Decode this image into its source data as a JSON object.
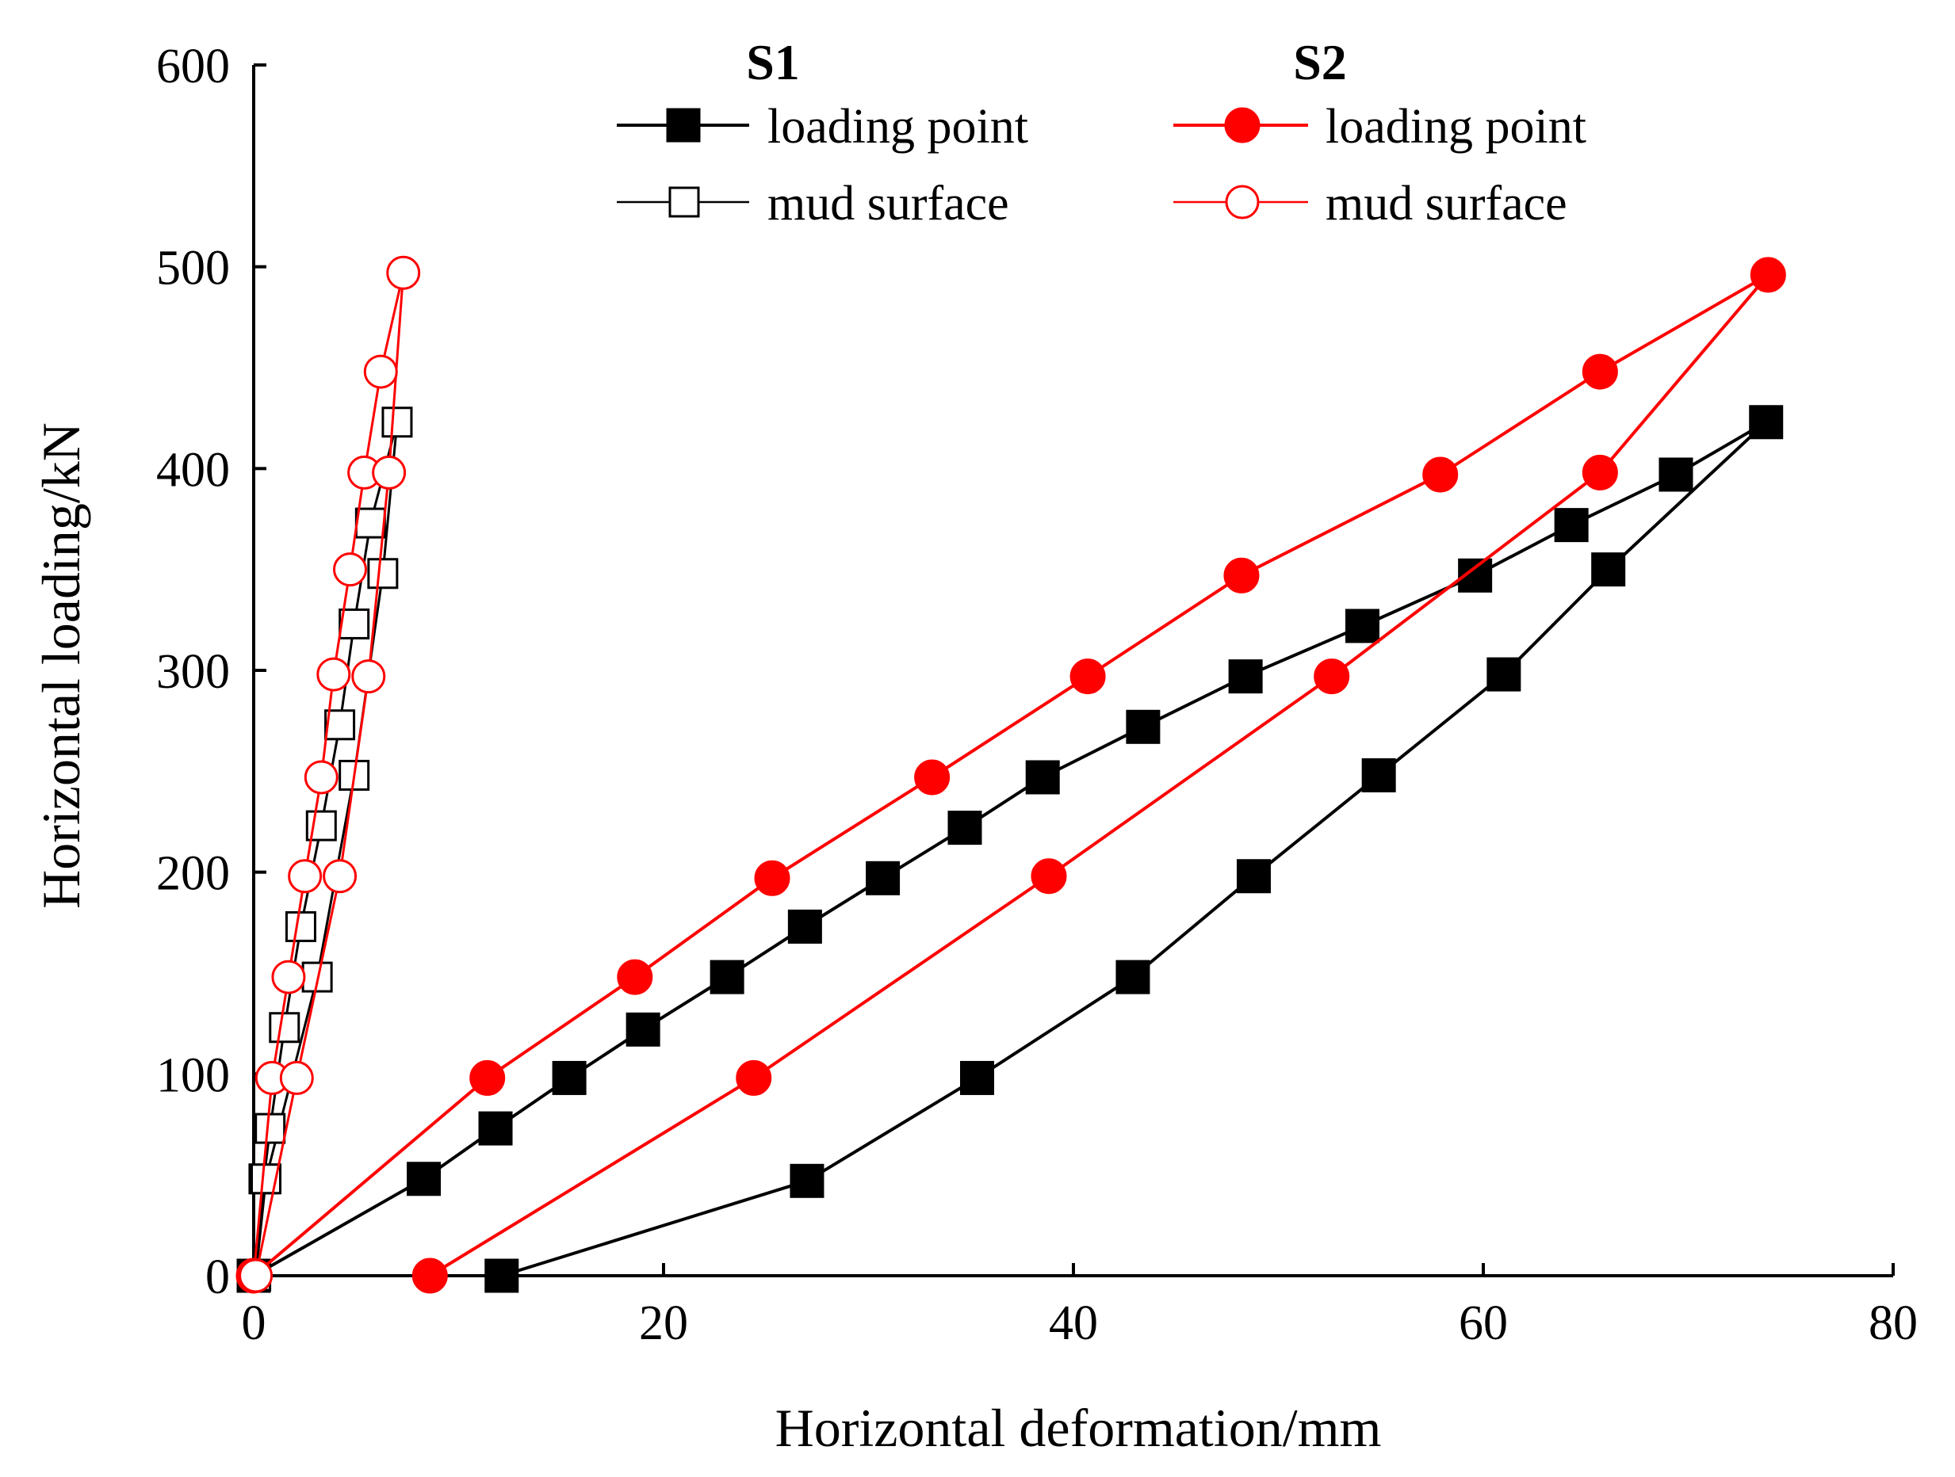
{
  "chart_data": {
    "type": "line",
    "xlabel": "Horizontal deformation/mm",
    "ylabel": "Horizontal loading/kN",
    "xlim": [
      0,
      80
    ],
    "ylim": [
      0,
      600
    ],
    "xticks": [
      0,
      20,
      40,
      60,
      80
    ],
    "yticks": [
      0,
      100,
      200,
      300,
      400,
      500,
      600
    ],
    "grid": false,
    "legend_position": "top",
    "legend_groups": [
      {
        "title": "S1",
        "entries": [
          "loading point",
          "mud surface"
        ]
      },
      {
        "title": "S2",
        "entries": [
          "loading point",
          "mud surface"
        ]
      }
    ],
    "series": [
      {
        "group": "S1",
        "name": "loading point",
        "color": "#000000",
        "marker": "square",
        "filled": true,
        "points": [
          [
            0,
            0
          ],
          [
            8.3,
            48
          ],
          [
            11.8,
            73
          ],
          [
            15.4,
            98
          ],
          [
            19.0,
            122
          ],
          [
            23.1,
            148
          ],
          [
            26.9,
            173
          ],
          [
            30.7,
            197
          ],
          [
            34.7,
            222
          ],
          [
            38.5,
            247
          ],
          [
            43.4,
            272
          ],
          [
            48.4,
            297
          ],
          [
            54.1,
            322
          ],
          [
            59.6,
            347
          ],
          [
            64.3,
            372
          ],
          [
            69.4,
            397
          ],
          [
            73.8,
            423
          ],
          [
            66.1,
            350
          ],
          [
            61.0,
            298
          ],
          [
            54.9,
            248
          ],
          [
            48.8,
            198
          ],
          [
            42.9,
            148
          ],
          [
            35.3,
            98
          ],
          [
            27.0,
            47
          ],
          [
            12.1,
            0
          ]
        ]
      },
      {
        "group": "S1",
        "name": "mud surface",
        "color": "#000000",
        "marker": "square",
        "filled": false,
        "points": [
          [
            0,
            0
          ],
          [
            0.5,
            48
          ],
          [
            0.8,
            73
          ],
          [
            1.5,
            123
          ],
          [
            2.3,
            173
          ],
          [
            3.3,
            223
          ],
          [
            4.2,
            273
          ],
          [
            4.9,
            323
          ],
          [
            5.7,
            373
          ],
          [
            7.0,
            423
          ],
          [
            6.3,
            348
          ],
          [
            4.9,
            248
          ],
          [
            3.1,
            148
          ],
          [
            0.6,
            48
          ],
          [
            0.1,
            0
          ]
        ]
      },
      {
        "group": "S2",
        "name": "loading point",
        "color": "#ff0000",
        "marker": "circle",
        "filled": true,
        "points": [
          [
            0,
            0
          ],
          [
            11.4,
            98
          ],
          [
            18.6,
            148
          ],
          [
            25.3,
            197
          ],
          [
            33.1,
            247
          ],
          [
            40.7,
            297
          ],
          [
            48.2,
            347
          ],
          [
            57.9,
            397
          ],
          [
            65.7,
            448
          ],
          [
            73.9,
            496
          ],
          [
            65.7,
            398
          ],
          [
            52.6,
            297
          ],
          [
            38.8,
            198
          ],
          [
            24.4,
            98
          ],
          [
            8.6,
            0
          ]
        ]
      },
      {
        "group": "S2",
        "name": "mud surface",
        "color": "#ff0000",
        "marker": "circle",
        "filled": false,
        "points": [
          [
            0,
            0
          ],
          [
            0.9,
            98
          ],
          [
            1.7,
            148
          ],
          [
            2.5,
            198
          ],
          [
            3.3,
            247
          ],
          [
            3.9,
            298
          ],
          [
            4.7,
            350
          ],
          [
            5.4,
            398
          ],
          [
            6.2,
            448
          ],
          [
            7.3,
            497
          ],
          [
            6.6,
            398
          ],
          [
            5.6,
            297
          ],
          [
            4.2,
            198
          ],
          [
            2.1,
            98
          ],
          [
            0.1,
            0
          ]
        ]
      }
    ]
  }
}
